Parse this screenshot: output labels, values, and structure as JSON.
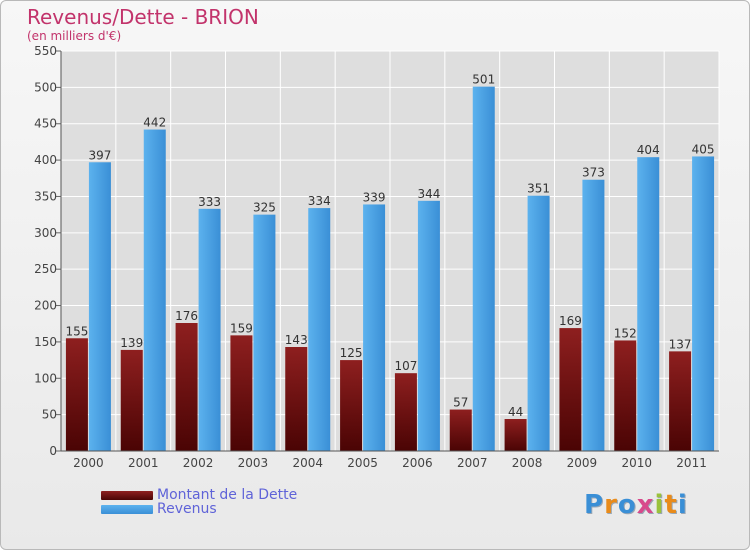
{
  "title": "Revenus/Dette - BRION",
  "subtitle": "(en milliers d'€)",
  "colors": {
    "title": "#c2336b",
    "debt": "#7a1010",
    "revenue": "#4aa3e6",
    "legend_text": "#5f63d8",
    "grid": "#ffffff"
  },
  "logo": {
    "text": "Proxiti",
    "letter_colors": [
      "#3a8fd6",
      "#e98b1a",
      "#3a8fd6",
      "#d84a8c",
      "#9ac23c",
      "#e98b1a",
      "#3a8fd6"
    ]
  },
  "chart_data": {
    "type": "bar",
    "title": "Revenus/Dette - BRION",
    "subtitle": "(en milliers d'€)",
    "categories": [
      "2000",
      "2001",
      "2002",
      "2003",
      "2004",
      "2005",
      "2006",
      "2007",
      "2008",
      "2009",
      "2010",
      "2011"
    ],
    "series": [
      {
        "name": "Montant de la Dette",
        "values": [
          155,
          139,
          176,
          159,
          143,
          125,
          107,
          57,
          44,
          169,
          152,
          137
        ]
      },
      {
        "name": "Revenus",
        "values": [
          397,
          442,
          333,
          325,
          334,
          339,
          344,
          501,
          351,
          373,
          404,
          405
        ]
      }
    ],
    "ylim": [
      0,
      550
    ],
    "yticks": [
      0,
      50,
      100,
      150,
      200,
      250,
      300,
      350,
      400,
      450,
      500,
      550
    ],
    "grid": true,
    "legend": "bottom-left"
  }
}
